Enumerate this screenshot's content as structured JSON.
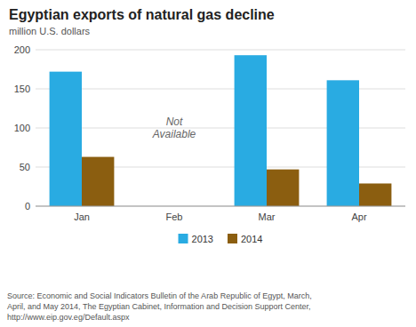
{
  "chart_data": {
    "type": "bar",
    "title": "Egyptian exports of natural gas decline",
    "subtitle": "million U.S. dollars",
    "categories": [
      "Jan",
      "Feb",
      "Mar",
      "Apr"
    ],
    "series": [
      {
        "name": "2013",
        "color": "#29abe2",
        "values": [
          172,
          null,
          193,
          161
        ]
      },
      {
        "name": "2014",
        "color": "#8B5E10",
        "values": [
          63,
          null,
          47,
          29
        ]
      }
    ],
    "ylim": [
      0,
      200
    ],
    "yticks": [
      0,
      50,
      100,
      150,
      200
    ],
    "grid": true,
    "legend": "bottom",
    "annotation": "Not\nAvailable",
    "source": "Source: Economic and Social Indicators Bulletin of the Arab Republic of Egypt, March,\nApril, and May 2014, The Egyptian Cabinet, Information and Decision Support Center,\nhttp://www.eip.gov.eg/Default.aspx"
  }
}
